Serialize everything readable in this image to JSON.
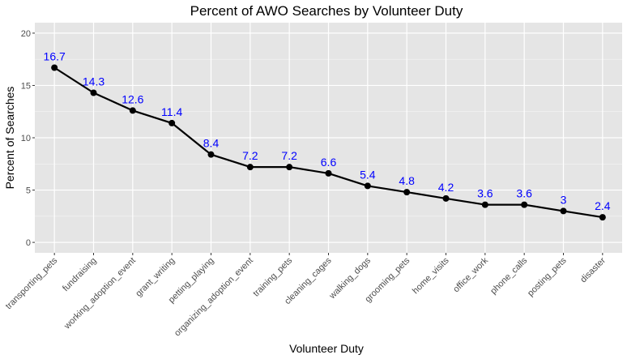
{
  "chart_data": {
    "type": "line",
    "title": "Percent of AWO Searches by Volunteer Duty",
    "xlabel": "Volunteer Duty",
    "ylabel": "Percent of Searches",
    "ylim": [
      -1,
      21
    ],
    "yticks": [
      0,
      5,
      10,
      15,
      20
    ],
    "grid": true,
    "categories": [
      "transporting_pets",
      "fundraising",
      "working_adoption_event",
      "grant_writing",
      "petting_playing",
      "organizing_adoption_event",
      "training_pets",
      "cleaning_cages",
      "walking_dogs",
      "grooming_pets",
      "home_visits",
      "office_work",
      "phone_calls",
      "posting_pets",
      "disaster"
    ],
    "series": [
      {
        "values": [
          16.7,
          14.3,
          12.6,
          11.4,
          8.4,
          7.2,
          7.2,
          6.6,
          5.4,
          4.8,
          4.2,
          3.6,
          3.6,
          3.0,
          2.4
        ],
        "data_labels": [
          "16.7",
          "14.3",
          "12.6",
          "11.4",
          "8.4",
          "7.2",
          "7.2",
          "6.6",
          "5.4",
          "4.8",
          "4.2",
          "3.6",
          "3.6",
          "3",
          "2.4"
        ]
      }
    ],
    "colors": {
      "panel": "#e5e5e5",
      "grid_major": "#ffffff",
      "line": "#000000",
      "label": "#0000ff",
      "tick_text": "#4d4d4d"
    }
  }
}
